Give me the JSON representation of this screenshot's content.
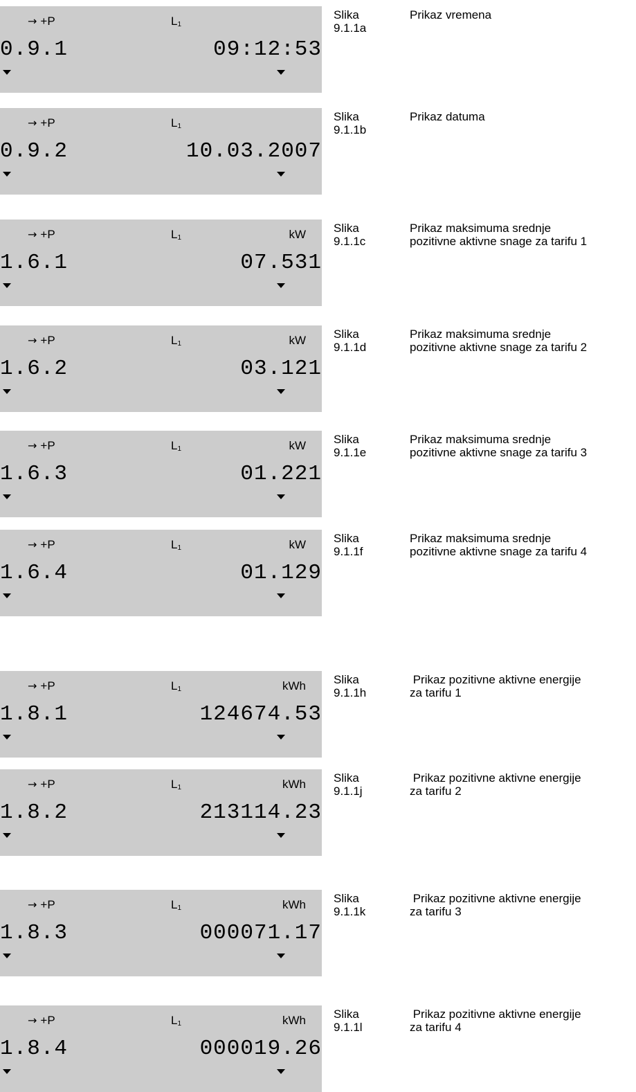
{
  "arrow_glyph": "→",
  "panels": [
    {
      "indicator": "+P",
      "phase": "L",
      "phase_sub": "1",
      "unit": "",
      "obis": "0.9.1",
      "value": "09:12:53",
      "caption_word": "Slika",
      "caption_num": "9.1.1a",
      "description": "Prikaz vremena"
    },
    {
      "indicator": "+P",
      "phase": "L",
      "phase_sub": "1",
      "unit": "",
      "obis": "0.9.2",
      "value": "10.03.2007",
      "caption_word": "Slika",
      "caption_num": "9.1.1b",
      "description": "Prikaz datuma"
    },
    {
      "indicator": "+P",
      "phase": "L",
      "phase_sub": "1",
      "unit": "kW",
      "obis": "1.6.1",
      "value": "07.531",
      "caption_word": "Slika",
      "caption_num": "9.1.1c",
      "description": "Prikaz maksimuma srednje\npozitivne aktivne snage za tarifu 1"
    },
    {
      "indicator": "+P",
      "phase": "L",
      "phase_sub": "1",
      "unit": "kW",
      "obis": "1.6.2",
      "value": "03.121",
      "caption_word": "Slika",
      "caption_num": "9.1.1d",
      "description": "Prikaz maksimuma srednje\npozitivne aktivne snage za tarifu 2"
    },
    {
      "indicator": "+P",
      "phase": "L",
      "phase_sub": "1",
      "unit": "kW",
      "obis": "1.6.3",
      "value": "01.221",
      "caption_word": "Slika",
      "caption_num": "9.1.1e",
      "description": "Prikaz maksimuma srednje\npozitivne aktivne snage za tarifu 3"
    },
    {
      "indicator": "+P",
      "phase": "L",
      "phase_sub": "1",
      "unit": "kW",
      "obis": "1.6.4",
      "value": "01.129",
      "caption_word": "Slika",
      "caption_num": "9.1.1f",
      "description": "Prikaz maksimuma srednje\npozitivne aktivne snage za tarifu 4"
    },
    {
      "indicator": "+P",
      "phase": "L",
      "phase_sub": "1",
      "unit": "kWh",
      "obis": "1.8.1",
      "value": "124674.53",
      "caption_word": "Slika",
      "caption_num": "9.1.1h",
      "description": " Prikaz pozitivne aktivne energije\nza tarifu 1"
    },
    {
      "indicator": "+P",
      "phase": "L",
      "phase_sub": "1",
      "unit": "kWh",
      "obis": "1.8.2",
      "value": "213114.23",
      "caption_word": "Slika",
      "caption_num": "9.1.1j",
      "description": " Prikaz pozitivne aktivne energije\nza tarifu 2"
    },
    {
      "indicator": "+P",
      "phase": "L",
      "phase_sub": "1",
      "unit": "kWh",
      "obis": "1.8.3",
      "value": "000071.17",
      "caption_word": "Slika",
      "caption_num": "9.1.1k",
      "description": " Prikaz pozitivne aktivne energije\nza tarifu 3"
    },
    {
      "indicator": "+P",
      "phase": "L",
      "phase_sub": "1",
      "unit": "kWh",
      "obis": "1.8.4",
      "value": "000019.26",
      "caption_word": "Slika",
      "caption_num": "9.1.1l",
      "description": " Prikaz pozitivne aktivne energije\nza tarifu 4"
    }
  ]
}
